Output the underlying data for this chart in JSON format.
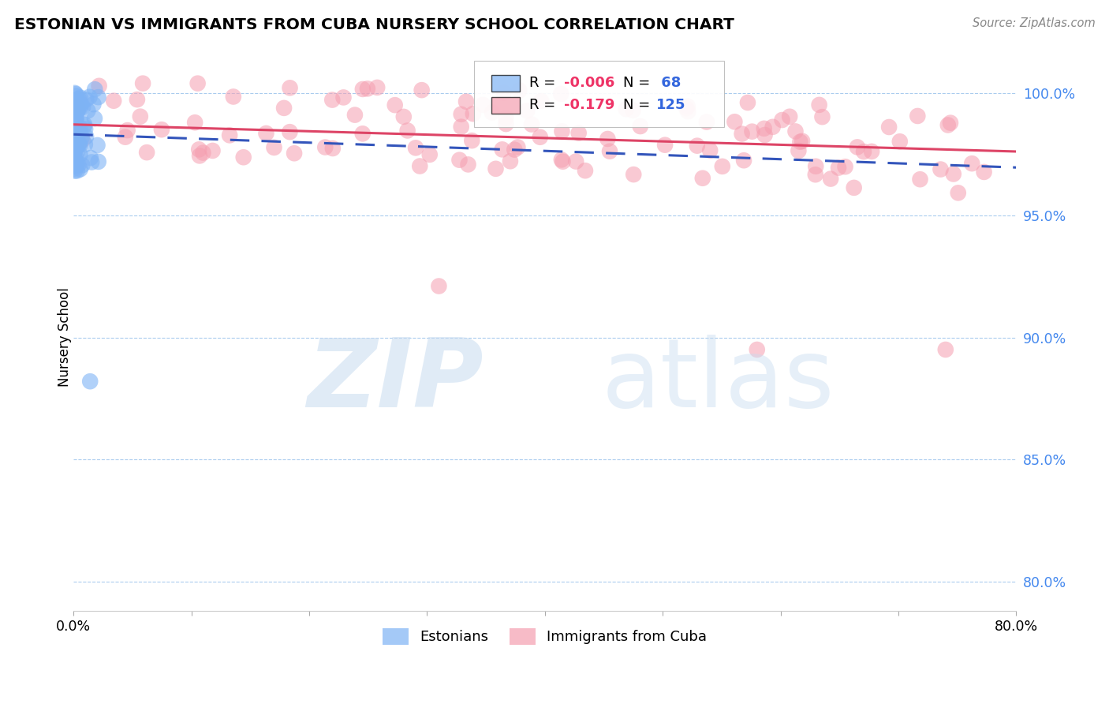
{
  "title": "ESTONIAN VS IMMIGRANTS FROM CUBA NURSERY SCHOOL CORRELATION CHART",
  "source": "Source: ZipAtlas.com",
  "ylabel": "Nursery School",
  "xlim": [
    0.0,
    0.8
  ],
  "ylim": [
    0.788,
    1.012
  ],
  "yticks": [
    0.8,
    0.85,
    0.9,
    0.95,
    1.0
  ],
  "ytick_labels": [
    "80.0%",
    "85.0%",
    "90.0%",
    "95.0%",
    "100.0%"
  ],
  "xticks": [
    0.0,
    0.1,
    0.2,
    0.3,
    0.4,
    0.5,
    0.6,
    0.7,
    0.8
  ],
  "xtick_labels": [
    "0.0%",
    "",
    "",
    "",
    "",
    "",
    "",
    "",
    "80.0%"
  ],
  "blue_color": "#7EB3F5",
  "pink_color": "#F59EB0",
  "blue_line_color": "#3355BB",
  "pink_line_color": "#DD4466",
  "legend_label_blue": "Estonians",
  "legend_label_pink": "Immigrants from Cuba",
  "blue_R_text": "-0.006",
  "blue_N_text": "68",
  "pink_R_text": "-0.179",
  "pink_N_text": "125",
  "R_color": "#EE3366",
  "N_color": "#3366DD"
}
